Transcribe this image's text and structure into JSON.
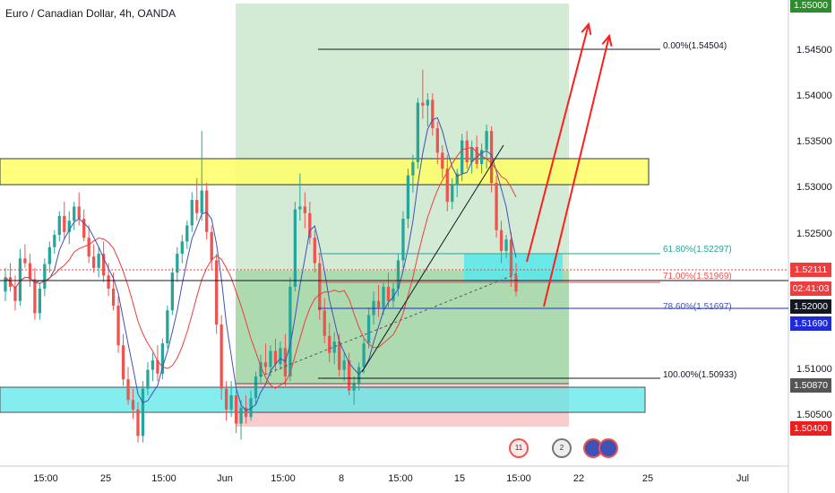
{
  "header": {
    "title": "Euro / Canadian Dollar, 4h, OANDA"
  },
  "colors": {
    "bull": "#26a69a",
    "bear": "#ef5350",
    "ma_fast": "#3f51b5",
    "ma_slow": "#ef3c3c",
    "yellow_zone": "#ffff66",
    "cyan_zone": "#5ce8e8",
    "profit_zone": "#c8e6c9",
    "loss_zone": "#f8c8c8",
    "arrow": "#ff1e1e",
    "top_price_bg": "#2e8b2e"
  },
  "price_axis": {
    "labels": [
      "1.54500",
      "1.54000",
      "1.53500",
      "1.53000",
      "1.52500",
      "1.51000",
      "1.50500"
    ],
    "badges": [
      {
        "value": "1.55000",
        "bg": "#2e8b2e",
        "fg": "#ffffff"
      },
      {
        "value": "1.52111",
        "bg": "#ef3c3c",
        "fg": "#ffffff"
      },
      {
        "value": "02:41:03",
        "bg": "#ef3c3c",
        "fg": "#ffffff"
      },
      {
        "value": "1.52000",
        "bg": "#131722",
        "fg": "#ffffff"
      },
      {
        "value": "1.51690",
        "bg": "#1e2bd6",
        "fg": "#ffffff"
      },
      {
        "value": "1.50870",
        "bg": "#555555",
        "fg": "#ffffff"
      },
      {
        "value": "1.50400",
        "bg": "#ef1e1e",
        "fg": "#ffffff"
      }
    ]
  },
  "time_axis": [
    "15:00",
    "25",
    "15:00",
    "Jun",
    "15:00",
    "8",
    "15:00",
    "15",
    "15:00",
    "22",
    "25",
    "Jul"
  ],
  "fib_levels": [
    {
      "label": "0.00%(1.54504)",
      "color": "#131722"
    },
    {
      "label": "61.80%(1.52297)",
      "color": "#26a69a"
    },
    {
      "label": "71.00%(1.51969)",
      "color": "#ef5350"
    },
    {
      "label": "78.60%(1.51697)",
      "color": "#3f51b5"
    },
    {
      "label": "100.00%(1.50933)",
      "color": "#131722"
    }
  ],
  "events": [
    {
      "icon": "news-event-icon",
      "count": "11"
    },
    {
      "icon": "news-event-icon",
      "count": "2"
    },
    {
      "icon": "flag-event-icon",
      "count": ""
    },
    {
      "icon": "flag-event-icon",
      "count": ""
    }
  ],
  "chart_data": {
    "type": "candlestick",
    "symbol": "EURCAD",
    "interval": "4h",
    "ylim": [
      1.503,
      1.552
    ],
    "candles": [
      [
        1.5215,
        1.524,
        1.5205,
        1.523
      ],
      [
        1.523,
        1.5245,
        1.5215,
        1.522
      ],
      [
        1.522,
        1.5232,
        1.5195,
        1.5205
      ],
      [
        1.5205,
        1.526,
        1.52,
        1.525
      ],
      [
        1.525,
        1.5265,
        1.524,
        1.5245
      ],
      [
        1.5245,
        1.5255,
        1.522,
        1.5228
      ],
      [
        1.5228,
        1.524,
        1.5185,
        1.5192
      ],
      [
        1.5192,
        1.5225,
        1.5185,
        1.5218
      ],
      [
        1.5218,
        1.525,
        1.521,
        1.5244
      ],
      [
        1.5244,
        1.5268,
        1.5235,
        1.5262
      ],
      [
        1.5262,
        1.528,
        1.5255,
        1.5275
      ],
      [
        1.5275,
        1.53,
        1.5268,
        1.5295
      ],
      [
        1.5295,
        1.531,
        1.527,
        1.5278
      ],
      [
        1.5278,
        1.53,
        1.5265,
        1.529
      ],
      [
        1.529,
        1.531,
        1.528,
        1.5305
      ],
      [
        1.5305,
        1.532,
        1.5285,
        1.5292
      ],
      [
        1.5292,
        1.5302,
        1.5268,
        1.5272
      ],
      [
        1.5272,
        1.5285,
        1.5245,
        1.5252
      ],
      [
        1.5252,
        1.5265,
        1.5235,
        1.524
      ],
      [
        1.524,
        1.5262,
        1.523,
        1.5255
      ],
      [
        1.5255,
        1.5268,
        1.5225,
        1.5232
      ],
      [
        1.5232,
        1.5245,
        1.521,
        1.5218
      ],
      [
        1.5218,
        1.5235,
        1.5195,
        1.52
      ],
      [
        1.52,
        1.521,
        1.515,
        1.5158
      ],
      [
        1.5158,
        1.517,
        1.5115,
        1.5122
      ],
      [
        1.5122,
        1.5135,
        1.5095,
        1.51
      ],
      [
        1.51,
        1.5112,
        1.508,
        1.509
      ],
      [
        1.509,
        1.5098,
        1.5055,
        1.5062
      ],
      [
        1.5062,
        1.512,
        1.5055,
        1.5112
      ],
      [
        1.5112,
        1.514,
        1.5105,
        1.5132
      ],
      [
        1.5132,
        1.515,
        1.512,
        1.5142
      ],
      [
        1.5142,
        1.5158,
        1.512,
        1.5128
      ],
      [
        1.5128,
        1.5165,
        1.5122,
        1.516
      ],
      [
        1.516,
        1.52,
        1.5155,
        1.5195
      ],
      [
        1.5195,
        1.524,
        1.519,
        1.5235
      ],
      [
        1.5235,
        1.5262,
        1.5225,
        1.5255
      ],
      [
        1.5255,
        1.5275,
        1.5245,
        1.5268
      ],
      [
        1.5268,
        1.529,
        1.526,
        1.5285
      ],
      [
        1.5285,
        1.532,
        1.5278,
        1.5312
      ],
      [
        1.5312,
        1.5335,
        1.529,
        1.5298
      ],
      [
        1.5298,
        1.5385,
        1.529,
        1.5322
      ],
      [
        1.5322,
        1.533,
        1.527,
        1.5278
      ],
      [
        1.5278,
        1.5285,
        1.5238,
        1.5248
      ],
      [
        1.5248,
        1.5255,
        1.517,
        1.518
      ],
      [
        1.518,
        1.519,
        1.51,
        1.5112
      ],
      [
        1.5112,
        1.512,
        1.5078,
        1.509
      ],
      [
        1.509,
        1.512,
        1.5082,
        1.5105
      ],
      [
        1.5105,
        1.511,
        1.5065,
        1.5075
      ],
      [
        1.5075,
        1.51,
        1.5058,
        1.5092
      ],
      [
        1.5092,
        1.5105,
        1.5075,
        1.5082
      ],
      [
        1.5082,
        1.511,
        1.5078,
        1.5102
      ],
      [
        1.5102,
        1.513,
        1.5095,
        1.5125
      ],
      [
        1.5125,
        1.5148,
        1.5118,
        1.514
      ],
      [
        1.514,
        1.516,
        1.5128,
        1.5135
      ],
      [
        1.5135,
        1.5158,
        1.5125,
        1.5152
      ],
      [
        1.5152,
        1.5165,
        1.513,
        1.5138
      ],
      [
        1.5138,
        1.5162,
        1.5132,
        1.5155
      ],
      [
        1.5155,
        1.517,
        1.5115,
        1.5125
      ],
      [
        1.5125,
        1.523,
        1.512,
        1.522
      ],
      [
        1.522,
        1.531,
        1.5215,
        1.5302
      ],
      [
        1.5302,
        1.534,
        1.529,
        1.5305
      ],
      [
        1.5305,
        1.532,
        1.5282,
        1.5298
      ],
      [
        1.5298,
        1.531,
        1.5265,
        1.5272
      ],
      [
        1.5272,
        1.528,
        1.5235,
        1.5245
      ],
      [
        1.5245,
        1.5255,
        1.5185,
        1.5195
      ],
      [
        1.5195,
        1.5208,
        1.516,
        1.5168
      ],
      [
        1.5168,
        1.5182,
        1.514,
        1.515
      ],
      [
        1.515,
        1.5172,
        1.5138,
        1.5162
      ],
      [
        1.5162,
        1.517,
        1.5125,
        1.5132
      ],
      [
        1.5132,
        1.515,
        1.512,
        1.5142
      ],
      [
        1.5142,
        1.515,
        1.5105,
        1.511
      ],
      [
        1.511,
        1.5125,
        1.5095,
        1.5118
      ],
      [
        1.5118,
        1.514,
        1.511,
        1.5135
      ],
      [
        1.5135,
        1.5165,
        1.5128,
        1.516
      ],
      [
        1.516,
        1.5198,
        1.5155,
        1.519
      ],
      [
        1.519,
        1.5215,
        1.518,
        1.5205
      ],
      [
        1.5205,
        1.5222,
        1.5188,
        1.5198
      ],
      [
        1.5198,
        1.5225,
        1.519,
        1.522
      ],
      [
        1.522,
        1.5235,
        1.5198,
        1.5205
      ],
      [
        1.5205,
        1.5225,
        1.5198,
        1.5218
      ],
      [
        1.5218,
        1.5255,
        1.521,
        1.5248
      ],
      [
        1.5248,
        1.53,
        1.524,
        1.5292
      ],
      [
        1.5292,
        1.5345,
        1.5282,
        1.5338
      ],
      [
        1.5338,
        1.536,
        1.532,
        1.5352
      ],
      [
        1.5352,
        1.542,
        1.5345,
        1.5415
      ],
      [
        1.5415,
        1.545,
        1.5398,
        1.5412
      ],
      [
        1.5412,
        1.5425,
        1.539,
        1.5418
      ],
      [
        1.5418,
        1.5425,
        1.538,
        1.5388
      ],
      [
        1.5388,
        1.5395,
        1.535,
        1.5362
      ],
      [
        1.5362,
        1.537,
        1.5335,
        1.5345
      ],
      [
        1.5345,
        1.536,
        1.53,
        1.531
      ],
      [
        1.531,
        1.5335,
        1.5302,
        1.5328
      ],
      [
        1.5328,
        1.5345,
        1.5315,
        1.534
      ],
      [
        1.534,
        1.5382,
        1.5332,
        1.5375
      ],
      [
        1.5375,
        1.5385,
        1.5345,
        1.5352
      ],
      [
        1.5352,
        1.5375,
        1.534,
        1.5368
      ],
      [
        1.5368,
        1.538,
        1.5345,
        1.535
      ],
      [
        1.535,
        1.5372,
        1.534,
        1.5365
      ],
      [
        1.5365,
        1.5392,
        1.5345,
        1.5385
      ],
      [
        1.5385,
        1.539,
        1.532,
        1.533
      ],
      [
        1.533,
        1.5338,
        1.5272,
        1.528
      ],
      [
        1.528,
        1.529,
        1.5245,
        1.5258
      ],
      [
        1.5258,
        1.5275,
        1.525,
        1.527
      ],
      [
        1.527,
        1.5278,
        1.522,
        1.5232
      ],
      [
        1.5232,
        1.5245,
        1.521,
        1.5215
      ]
    ]
  }
}
